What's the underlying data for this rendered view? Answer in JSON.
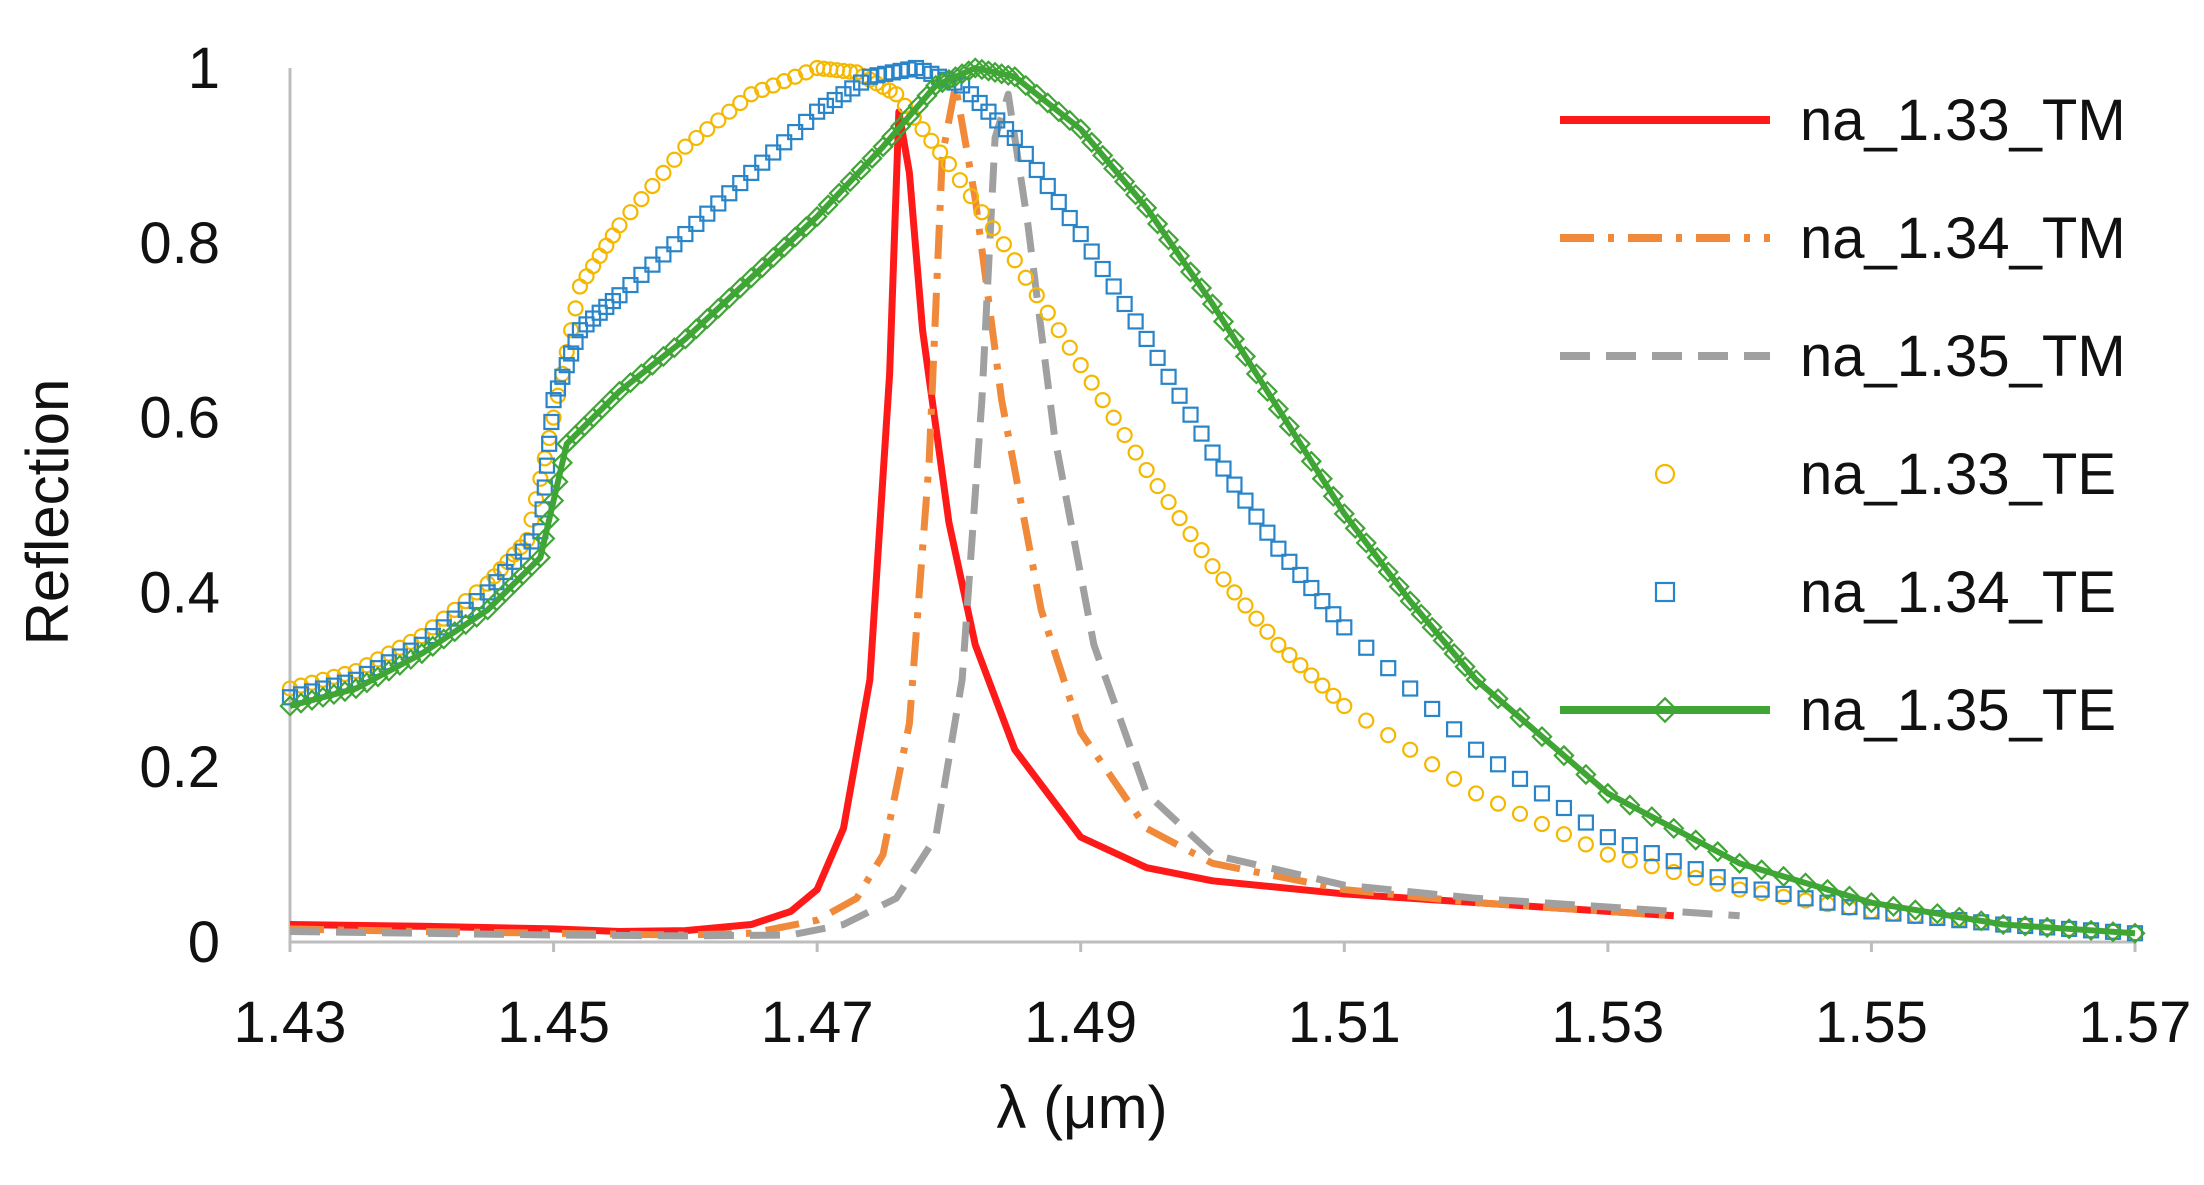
{
  "chart_data": {
    "type": "line",
    "title": "",
    "xlabel": "λ (μm)",
    "ylabel": "Reflection",
    "xlim": [
      1.43,
      1.57
    ],
    "ylim": [
      0,
      1
    ],
    "x_ticks": [
      1.43,
      1.45,
      1.47,
      1.49,
      1.51,
      1.53,
      1.55,
      1.57
    ],
    "x_tick_labels": [
      "1.43",
      "1.45",
      "1.47",
      "1.49",
      "1.51",
      "1.53",
      "1.55",
      "1.57"
    ],
    "y_ticks": [
      0,
      0.2,
      0.4,
      0.6,
      0.8,
      1
    ],
    "y_tick_labels": [
      "0",
      "0.2",
      "0.4",
      "0.6",
      "0.8",
      "1"
    ],
    "grid": false,
    "legend_position": "right",
    "series": [
      {
        "name": "na_1.33_TM",
        "color": "#ff1a1a",
        "style": "solid",
        "marker": "none",
        "x": [
          1.43,
          1.44,
          1.45,
          1.455,
          1.46,
          1.465,
          1.468,
          1.47,
          1.472,
          1.474,
          1.4755,
          1.4762,
          1.477,
          1.478,
          1.48,
          1.482,
          1.485,
          1.49,
          1.495,
          1.5,
          1.51,
          1.52,
          1.53,
          1.535
        ],
        "y": [
          0.02,
          0.018,
          0.015,
          0.012,
          0.013,
          0.02,
          0.035,
          0.06,
          0.13,
          0.3,
          0.65,
          0.95,
          0.88,
          0.7,
          0.48,
          0.34,
          0.22,
          0.12,
          0.085,
          0.07,
          0.055,
          0.045,
          0.035,
          0.03
        ]
      },
      {
        "name": "na_1.34_TM",
        "color": "#f08a3a",
        "style": "dashdot",
        "marker": "none",
        "x": [
          1.43,
          1.44,
          1.45,
          1.46,
          1.465,
          1.47,
          1.473,
          1.475,
          1.477,
          1.4785,
          1.4795,
          1.4805,
          1.482,
          1.484,
          1.487,
          1.49,
          1.495,
          1.5,
          1.51,
          1.52,
          1.53,
          1.535
        ],
        "y": [
          0.015,
          0.012,
          0.01,
          0.008,
          0.01,
          0.025,
          0.05,
          0.1,
          0.25,
          0.55,
          0.9,
          0.98,
          0.85,
          0.62,
          0.38,
          0.24,
          0.13,
          0.09,
          0.06,
          0.045,
          0.035,
          0.03
        ]
      },
      {
        "name": "na_1.35_TM",
        "color": "#a0a0a0",
        "style": "dashed",
        "marker": "none",
        "x": [
          1.43,
          1.44,
          1.45,
          1.46,
          1.468,
          1.472,
          1.476,
          1.479,
          1.481,
          1.4825,
          1.4835,
          1.4845,
          1.486,
          1.488,
          1.491,
          1.495,
          1.5,
          1.51,
          1.52,
          1.53,
          1.54
        ],
        "y": [
          0.012,
          0.01,
          0.008,
          0.007,
          0.008,
          0.02,
          0.05,
          0.12,
          0.3,
          0.62,
          0.92,
          0.97,
          0.82,
          0.58,
          0.34,
          0.17,
          0.1,
          0.065,
          0.05,
          0.04,
          0.03
        ]
      },
      {
        "name": "na_1.33_TE",
        "color": "#f5b800",
        "style": "none",
        "marker": "circle",
        "x": [
          1.43,
          1.435,
          1.44,
          1.445,
          1.448,
          1.45,
          1.452,
          1.455,
          1.46,
          1.465,
          1.47,
          1.473,
          1.476,
          1.48,
          1.485,
          1.49,
          1.495,
          1.5,
          1.505,
          1.51,
          1.52,
          1.53,
          1.54,
          1.55,
          1.56,
          1.57
        ],
        "y": [
          0.29,
          0.31,
          0.35,
          0.41,
          0.46,
          0.6,
          0.75,
          0.82,
          0.91,
          0.97,
          1.0,
          0.995,
          0.97,
          0.89,
          0.78,
          0.66,
          0.54,
          0.43,
          0.34,
          0.27,
          0.17,
          0.1,
          0.06,
          0.035,
          0.02,
          0.01
        ]
      },
      {
        "name": "na_1.34_TE",
        "color": "#2a85c8",
        "style": "none",
        "marker": "square",
        "x": [
          1.43,
          1.435,
          1.44,
          1.445,
          1.449,
          1.45,
          1.452,
          1.455,
          1.46,
          1.465,
          1.47,
          1.474,
          1.4775,
          1.481,
          1.485,
          1.49,
          1.495,
          1.5,
          1.505,
          1.51,
          1.52,
          1.53,
          1.54,
          1.55,
          1.56,
          1.57
        ],
        "y": [
          0.28,
          0.3,
          0.34,
          0.4,
          0.47,
          0.62,
          0.7,
          0.74,
          0.81,
          0.88,
          0.95,
          0.99,
          1.0,
          0.98,
          0.92,
          0.81,
          0.69,
          0.56,
          0.45,
          0.36,
          0.22,
          0.12,
          0.065,
          0.035,
          0.02,
          0.01
        ]
      },
      {
        "name": "na_1.35_TE",
        "color": "#3fa535",
        "style": "solid",
        "marker": "diamond",
        "x": [
          1.43,
          1.435,
          1.44,
          1.445,
          1.449,
          1.451,
          1.455,
          1.46,
          1.465,
          1.47,
          1.475,
          1.479,
          1.482,
          1.485,
          1.49,
          1.495,
          1.5,
          1.505,
          1.51,
          1.515,
          1.52,
          1.53,
          1.54,
          1.55,
          1.56,
          1.57
        ],
        "y": [
          0.27,
          0.29,
          0.33,
          0.38,
          0.44,
          0.57,
          0.63,
          0.69,
          0.76,
          0.83,
          0.91,
          0.98,
          1.0,
          0.99,
          0.93,
          0.84,
          0.73,
          0.61,
          0.49,
          0.39,
          0.3,
          0.17,
          0.09,
          0.045,
          0.02,
          0.01
        ]
      }
    ]
  }
}
